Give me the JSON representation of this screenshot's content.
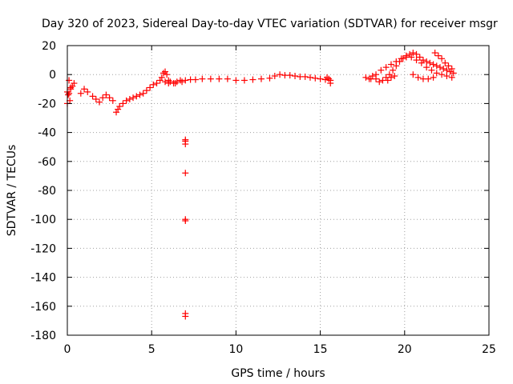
{
  "chart_data": {
    "type": "scatter",
    "title": "Day 320 of 2023, Sidereal Day-to-day VTEC variation (SDTVAR) for receiver msgr",
    "xlabel": "GPS time / hours",
    "ylabel": "SDTVAR / TECUs",
    "xlim": [
      0,
      25
    ],
    "ylim": [
      -180,
      20
    ],
    "xticks": [
      0,
      5,
      10,
      15,
      20,
      25
    ],
    "yticks": [
      20,
      0,
      -20,
      -40,
      -60,
      -80,
      -100,
      -120,
      -140,
      -160,
      -180
    ],
    "grid": true,
    "marker": "plus",
    "colors": {
      "series": "#ff0000",
      "axis": "#000000",
      "grid": "#a0a0a0"
    },
    "series": [
      {
        "name": "msgr",
        "x": [
          0.0,
          0.1,
          0.2,
          0.3,
          0.4,
          0.1,
          0.2,
          0.05,
          0.0,
          0.15,
          0.8,
          1.0,
          1.2,
          1.5,
          1.7,
          1.9,
          2.1,
          2.3,
          2.5,
          2.7,
          2.9,
          3.0,
          3.1,
          3.3,
          3.5,
          3.7,
          3.9,
          4.1,
          4.3,
          4.5,
          4.7,
          4.9,
          5.1,
          5.3,
          5.5,
          5.6,
          5.7,
          5.8,
          5.9,
          6.0,
          6.1,
          6.3,
          6.5,
          6.7,
          7.0,
          7.3,
          7.6,
          8.0,
          8.5,
          9.0,
          9.5,
          10.0,
          10.5,
          11.0,
          11.5,
          12.0,
          12.3,
          12.6,
          12.9,
          13.2,
          13.5,
          13.8,
          14.1,
          14.4,
          14.7,
          15.0,
          15.3,
          15.6,
          15.6,
          15.5,
          15.4,
          17.7,
          17.9,
          18.1,
          18.3,
          18.5,
          18.7,
          18.9,
          19.1,
          19.3,
          19.5,
          19.7,
          19.9,
          20.1,
          20.3,
          20.5,
          20.7,
          20.9,
          21.1,
          21.3,
          21.5,
          21.7,
          21.9,
          22.1,
          22.3,
          22.5,
          22.7,
          22.9,
          18.0,
          18.3,
          18.6,
          18.9,
          19.2,
          19.5,
          19.8,
          20.1,
          20.4,
          20.7,
          21.0,
          21.3,
          21.6,
          21.9,
          22.2,
          22.5,
          22.8,
          21.8,
          22.0,
          22.2,
          22.4,
          22.6,
          22.8,
          20.5,
          20.8,
          21.1,
          21.4,
          21.7,
          19.0,
          19.2,
          19.4,
          5.8,
          6.0,
          6.4,
          6.8,
          7.0,
          7.0,
          7.0,
          7.0,
          7.0,
          7.0,
          7.0,
          7.0
        ],
        "y": [
          -20,
          -13,
          -10,
          -8,
          -6,
          -4,
          -9,
          -14,
          -12,
          -18,
          -13,
          -10,
          -12,
          -15,
          -17,
          -19,
          -16,
          -14,
          -16,
          -18,
          -26,
          -24,
          -22,
          -20,
          -18,
          -17,
          -16,
          -15,
          -14,
          -13,
          -11,
          -9,
          -7,
          -6,
          -4,
          -2,
          1,
          2,
          0,
          -4,
          -5,
          -6,
          -5,
          -4,
          -4,
          -3.5,
          -3.5,
          -3,
          -3,
          -3,
          -3,
          -4,
          -4,
          -3.5,
          -3,
          -2.5,
          -1,
          0,
          -0.5,
          -0.5,
          -1,
          -1.5,
          -1.5,
          -2,
          -2.5,
          -3,
          -3.5,
          -4,
          -6,
          -3,
          -2,
          -2,
          -3,
          -1,
          -3,
          -5,
          -4,
          -2,
          0,
          3,
          6,
          9,
          11,
          13,
          14,
          15,
          14,
          12,
          10,
          9,
          8,
          7,
          6,
          5,
          4,
          3,
          2,
          1,
          -3,
          0,
          3,
          5,
          7,
          9,
          11,
          12,
          12,
          10,
          8,
          5,
          3,
          1,
          0,
          -1,
          -2,
          15,
          13,
          11,
          8,
          6,
          4,
          0,
          -2,
          -3,
          -3,
          -2,
          -4,
          -2,
          -1,
          -5,
          -6,
          -6,
          -5,
          -45,
          -48,
          -46,
          -68,
          -100,
          -101,
          -165,
          -167
        ]
      }
    ]
  }
}
